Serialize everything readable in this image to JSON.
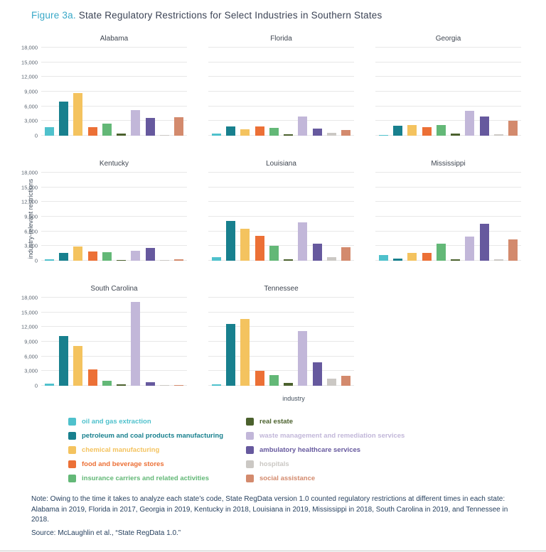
{
  "figure": {
    "label": "Figure 3a.",
    "title": "State Regulatory Restrictions for Select Industries in Southern States"
  },
  "axes": {
    "ylabel": "industry-relevant restrictions",
    "xlabel": "industry"
  },
  "chart_data": {
    "type": "bar",
    "title": "State Regulatory Restrictions for Select Industries in Southern States",
    "xlabel": "industry",
    "ylabel": "industry-relevant restrictions",
    "ylim": [
      0,
      18000
    ],
    "yticks": [
      0,
      3000,
      6000,
      9000,
      12000,
      15000,
      18000
    ],
    "ytick_labels": [
      "0",
      "3,000",
      "6,000",
      "9,000",
      "12,000",
      "15,000",
      "18,000"
    ],
    "grid": "horizontal-major",
    "legend_position": "bottom",
    "categories": [
      "oil and gas extraction",
      "petroleum and coal products manufacturing",
      "chemical manufacturing",
      "food and beverage stores",
      "insurance carriers and related activities",
      "real estate",
      "waste management and remediation services",
      "ambulatory healthcare services",
      "hospitals",
      "social assistance"
    ],
    "colors": [
      "#4FC1CC",
      "#18808E",
      "#F4C35F",
      "#EC7036",
      "#63B877",
      "#4B612D",
      "#C2B7D9",
      "#66599E",
      "#CBC8C4",
      "#D38A6D"
    ],
    "panels": [
      {
        "state": "Alabama",
        "values": [
          1800,
          6900,
          8700,
          1800,
          2500,
          450,
          5200,
          3700,
          200,
          3800
        ]
      },
      {
        "state": "Florida",
        "values": [
          450,
          1950,
          1350,
          1950,
          1650,
          300,
          3900,
          1400,
          600,
          1200
        ]
      },
      {
        "state": "Georgia",
        "values": [
          150,
          2100,
          2200,
          1800,
          2200,
          450,
          5100,
          3900,
          300,
          3000
        ]
      },
      {
        "state": "Kentucky",
        "values": [
          350,
          1650,
          2850,
          1950,
          1800,
          150,
          2100,
          2550,
          150,
          250
        ]
      },
      {
        "state": "Louisiana",
        "values": [
          800,
          8100,
          6600,
          5100,
          3000,
          250,
          7900,
          3450,
          750,
          2700
        ]
      },
      {
        "state": "Mississippi",
        "values": [
          1200,
          450,
          1650,
          1650,
          3450,
          250,
          5000,
          7500,
          250,
          4350
        ]
      },
      {
        "state": "South Carolina",
        "values": [
          500,
          10200,
          8200,
          3300,
          1050,
          300,
          17200,
          800,
          150,
          150
        ]
      },
      {
        "state": "Tennessee",
        "values": [
          300,
          12600,
          13600,
          3000,
          2200,
          600,
          11200,
          4800,
          1500,
          2000
        ]
      }
    ]
  },
  "legend": {
    "columns": [
      [
        {
          "label": "oil and gas extraction",
          "color": "#4FC1CC"
        },
        {
          "label": "petroleum and coal products manufacturing",
          "color": "#18808E"
        },
        {
          "label": "chemical manufacturing",
          "color": "#F4C35F"
        },
        {
          "label": "food and beverage stores",
          "color": "#EC7036"
        },
        {
          "label": "insurance carriers and related activities",
          "color": "#63B877"
        }
      ],
      [
        {
          "label": "real estate",
          "color": "#4B612D"
        },
        {
          "label": "waste management and remediation services",
          "color": "#C2B7D9"
        },
        {
          "label": "ambulatory healthcare services",
          "color": "#66599E"
        },
        {
          "label": "hospitals",
          "color": "#CBC8C4"
        },
        {
          "label": "social assistance",
          "color": "#D38A6D"
        }
      ]
    ]
  },
  "notes": {
    "note": "Note: Owing to the time it takes to analyze each state’s code, State RegData version 1.0 counted regulatory restrictions at different times in each state: Alabama in 2019, Florida in 2017, Georgia in 2019, Kentucky in 2018, Louisiana in 2019, Mississippi in 2018, South Carolina in 2019, and Tennessee in 2018.",
    "source": "Source: McLaughlin et al., “State RegData 1.0.”"
  }
}
